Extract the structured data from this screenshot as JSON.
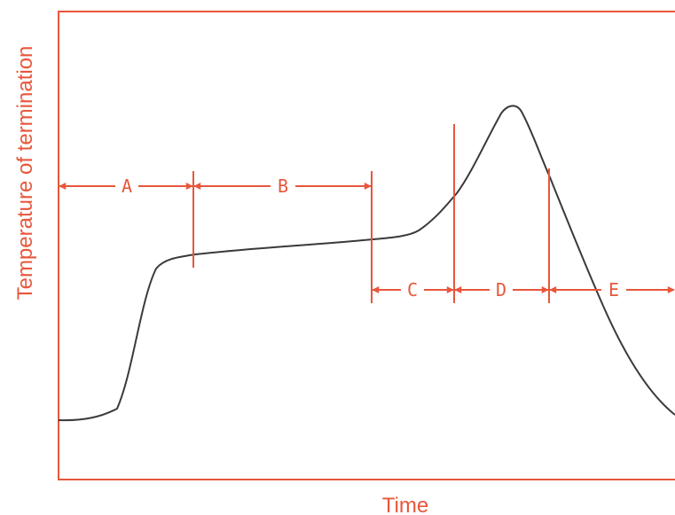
{
  "diagram": {
    "x_axis_label": "Time",
    "y_axis_label": "Temperature of termination",
    "phases": [
      {
        "id": "A",
        "label": "A"
      },
      {
        "id": "B",
        "label": "B"
      },
      {
        "id": "C",
        "label": "C"
      },
      {
        "id": "D",
        "label": "D"
      },
      {
        "id": "E",
        "label": "E"
      }
    ],
    "colors": {
      "annotation": "#e8563c",
      "curve": "#3a3a3a",
      "background": "#ffffff"
    }
  }
}
